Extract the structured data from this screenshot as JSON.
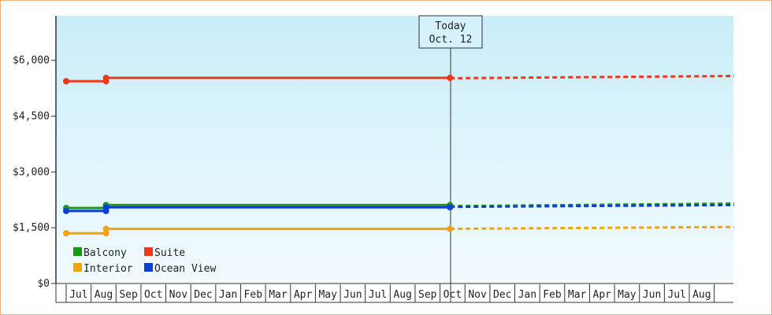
{
  "chart_data": {
    "type": "line",
    "title": "",
    "xlabel": "",
    "ylabel": "",
    "ylim": [
      0,
      7200
    ],
    "y_ticks": [
      0,
      1500,
      3000,
      4500,
      6000
    ],
    "y_tick_labels": [
      "$0",
      "$1,500",
      "$3,000",
      "$4,500",
      "$6,000"
    ],
    "months": [
      "Jul",
      "Aug",
      "Sep",
      "Oct",
      "Nov",
      "Dec",
      "Jan",
      "Feb",
      "Mar",
      "Apr",
      "May",
      "Jun",
      "Jul",
      "Aug",
      "Sep",
      "Oct",
      "Nov",
      "Dec",
      "Jan",
      "Feb",
      "Mar",
      "Apr",
      "May",
      "Jun",
      "Jul",
      "Aug"
    ],
    "today_marker": {
      "line1": "Today",
      "line2": "Oct. 12"
    },
    "grid": false,
    "legend_position": "bottom-left",
    "series": [
      {
        "name": "Balcony",
        "color": "#169b16",
        "points": [
          {
            "month": 0,
            "value": 2030
          },
          {
            "month": 1.6,
            "value": 2030
          },
          {
            "month": 1.6,
            "value": 2110
          },
          {
            "month": 15.4,
            "value": 2110
          }
        ],
        "forecast": [
          {
            "month": 15.4,
            "value": 2080
          },
          {
            "month": 26.8,
            "value": 2150
          }
        ]
      },
      {
        "name": "Suite",
        "color": "#f0361b",
        "points": [
          {
            "month": 0,
            "value": 5440
          },
          {
            "month": 1.6,
            "value": 5440
          },
          {
            "month": 1.6,
            "value": 5530
          },
          {
            "month": 15.4,
            "value": 5530
          }
        ],
        "forecast": [
          {
            "month": 15.4,
            "value": 5520
          },
          {
            "month": 26.8,
            "value": 5580
          }
        ]
      },
      {
        "name": "Interior",
        "color": "#f0a30c",
        "points": [
          {
            "month": 0,
            "value": 1350
          },
          {
            "month": 1.6,
            "value": 1350
          },
          {
            "month": 1.6,
            "value": 1470
          },
          {
            "month": 15.4,
            "value": 1470
          }
        ],
        "forecast": [
          {
            "month": 15.4,
            "value": 1470
          },
          {
            "month": 26.8,
            "value": 1520
          }
        ]
      },
      {
        "name": "Ocean View",
        "color": "#0a3ed6",
        "points": [
          {
            "month": 0,
            "value": 1950
          },
          {
            "month": 1.6,
            "value": 1950
          },
          {
            "month": 1.6,
            "value": 2050
          },
          {
            "month": 15.4,
            "value": 2050
          }
        ],
        "forecast": [
          {
            "month": 15.4,
            "value": 2060
          },
          {
            "month": 26.8,
            "value": 2110
          }
        ]
      }
    ]
  }
}
